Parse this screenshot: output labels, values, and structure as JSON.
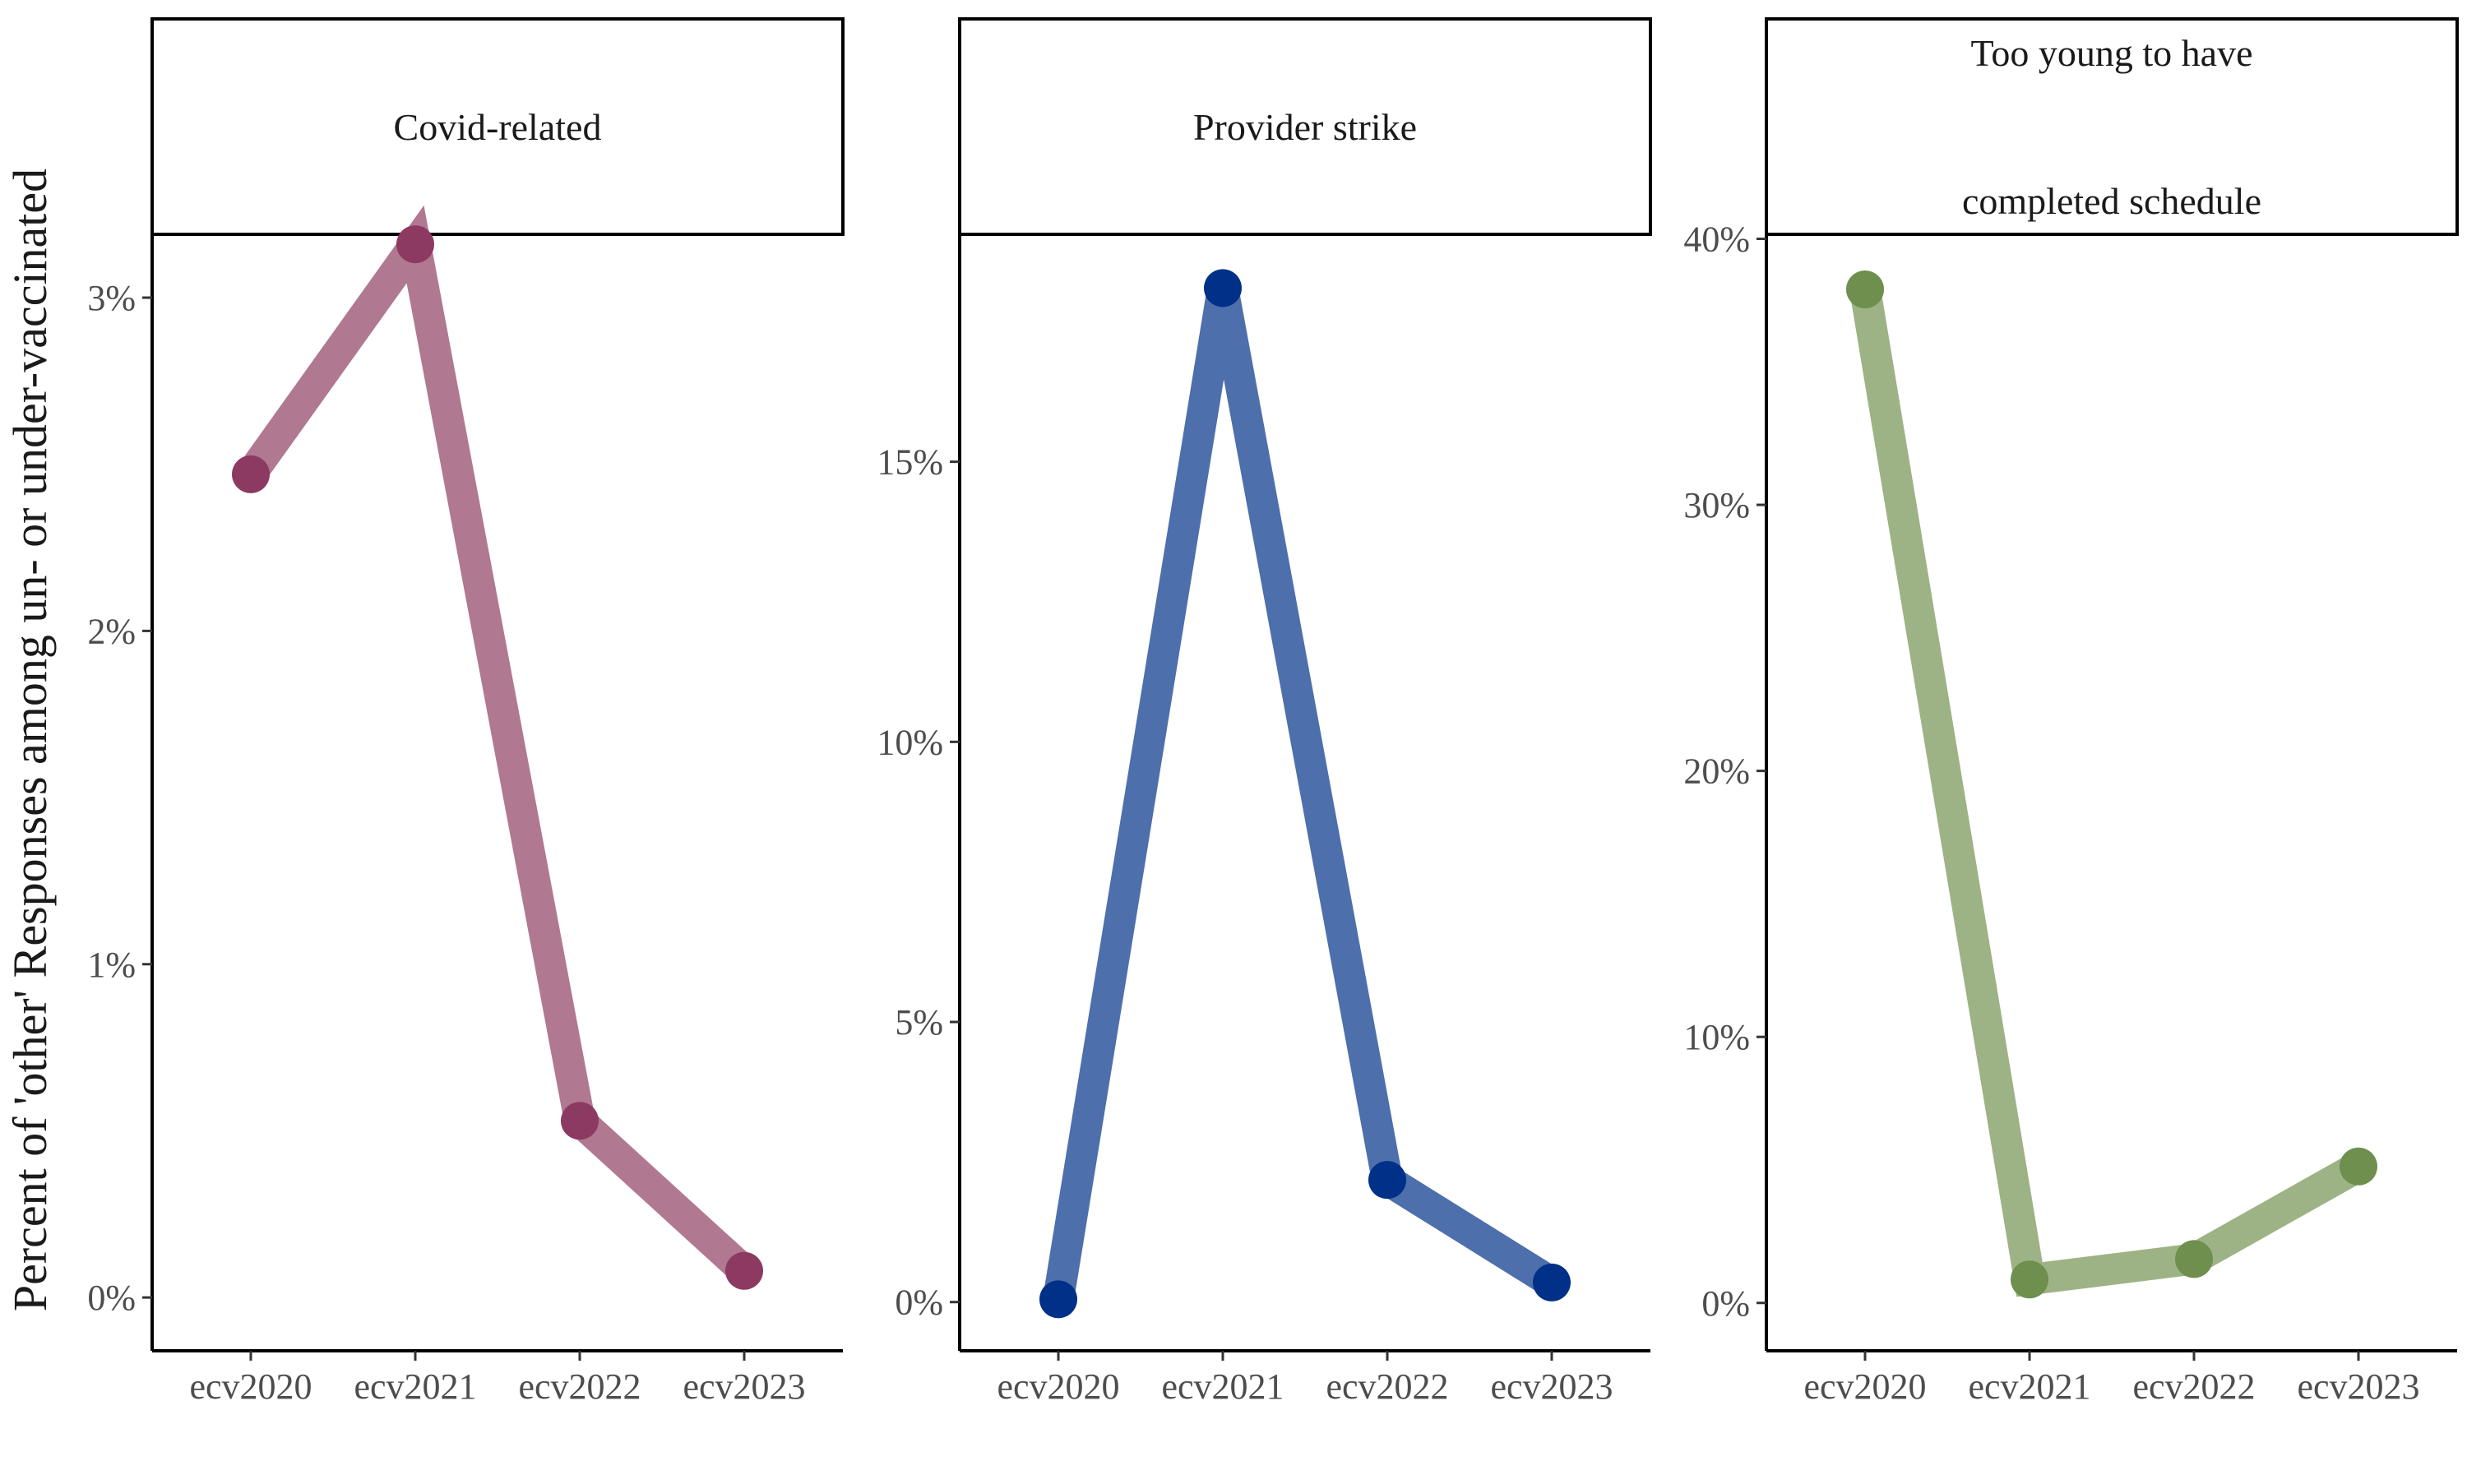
{
  "chart_data": {
    "type": "line",
    "ylabel": "Percent of 'other' Responses among un- or under-vaccinated",
    "xlabel": "",
    "categories": [
      "ecv2020",
      "ecv2021",
      "ecv2022",
      "ecv2023"
    ],
    "legend": "none",
    "grid": false,
    "facets": [
      {
        "strip_lines": [
          "Covid-related"
        ],
        "color_line": "#b07891",
        "color_point": "#8c3a62",
        "ylim": [
          -0.0016,
          0.0319
        ],
        "yticks": [
          0,
          0.01,
          0.02,
          0.03
        ],
        "ytick_labels": [
          "0%",
          "1%",
          "2%",
          "3%"
        ],
        "values": [
          0.0247,
          0.0316,
          0.0053,
          0.0008
        ]
      },
      {
        "strip_lines": [
          "Provider strike"
        ],
        "color_line": "#4d6fab",
        "color_point": "#003087",
        "ylim": [
          -0.0087,
          0.1906
        ],
        "yticks": [
          0,
          0.05,
          0.1,
          0.15
        ],
        "ytick_labels": [
          "0%",
          "5%",
          "10%",
          "15%"
        ],
        "values": [
          0.0005,
          0.181,
          0.0218,
          0.0035
        ]
      },
      {
        "strip_lines": [
          "Too young to have",
          "completed schedule"
        ],
        "color_line": "#9db385",
        "color_point": "#6e8f4d",
        "ylim": [
          -0.018,
          0.4017
        ],
        "yticks": [
          0,
          0.1,
          0.2,
          0.3,
          0.4
        ],
        "ytick_labels": [
          "0%",
          "10%",
          "20%",
          "30%",
          "40%"
        ],
        "values": [
          0.381,
          0.0088,
          0.0165,
          0.0513
        ]
      }
    ]
  }
}
